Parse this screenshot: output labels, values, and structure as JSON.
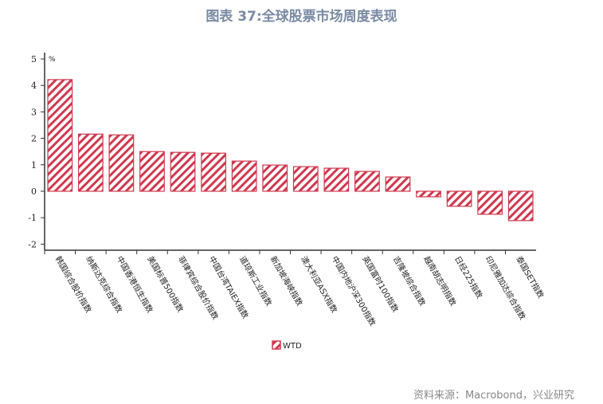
{
  "title": "图表 37:全球股票市场周度表现",
  "source": "资料来源：Macrobond，兴业研究",
  "chart_data": {
    "type": "bar",
    "title": "图表 37:全球股票市场周度表现",
    "ylabel": "%",
    "xlabel": "",
    "ylim": [
      -2,
      5
    ],
    "yticks": [
      5,
      4,
      3,
      2,
      1,
      0,
      -1,
      -2
    ],
    "grid": false,
    "legend_position": "bottom",
    "bar_color": "#d0384e",
    "bar_pattern": "diagonal-hatch",
    "categories": [
      "韩国综合股价指数",
      "纳斯达克综合指数",
      "中国香港恒生指数",
      "美国标普500指数",
      "菲律宾综合股价指数",
      "中国台湾TAIEX指数",
      "道琼斯工业指数",
      "新加坡海峡指数",
      "澳大利亚ASX指数",
      "中国内地沪深300指数",
      "英国富时100指数",
      "吉隆坡综合指数",
      "越南胡志明指数",
      "日经225指数",
      "印尼雅加达综合指数",
      "泰国SET指数"
    ],
    "series": [
      {
        "name": "WTD",
        "values": [
          4.22,
          2.16,
          2.13,
          1.5,
          1.47,
          1.44,
          1.14,
          0.99,
          0.93,
          0.87,
          0.75,
          0.54,
          -0.21,
          -0.57,
          -0.87,
          -1.11
        ]
      }
    ]
  }
}
